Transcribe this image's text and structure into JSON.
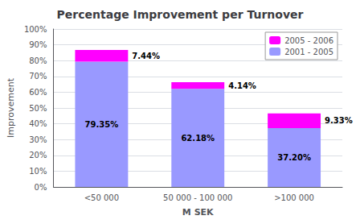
{
  "chart_data": {
    "type": "bar",
    "title": "Percentage Improvement per Turnover",
    "xlabel": "M SEK",
    "ylabel": "Improvement",
    "categories": [
      "<50 000",
      "50 000 - 100 000",
      ">100 000"
    ],
    "stacked": true,
    "series": [
      {
        "name": "2001 - 2005",
        "color": "#9999FF",
        "values": [
          79.35,
          62.18,
          37.2
        ],
        "value_labels": [
          "79.35%",
          "62.18%",
          "37.20%"
        ]
      },
      {
        "name": "2005 - 2006",
        "color": "#FF00FF",
        "values": [
          7.44,
          4.14,
          9.33
        ],
        "value_labels": [
          "7.44%",
          "4.14%",
          "9.33%"
        ]
      }
    ],
    "ylim": [
      0,
      100
    ],
    "yticks": [
      {
        "value": 0,
        "label": "0%"
      },
      {
        "value": 10,
        "label": "10%"
      },
      {
        "value": 20,
        "label": "20%"
      },
      {
        "value": 30,
        "label": "30%"
      },
      {
        "value": 40,
        "label": "40%"
      },
      {
        "value": 50,
        "label": "50%"
      },
      {
        "value": 60,
        "label": "60%"
      },
      {
        "value": 70,
        "label": "70%"
      },
      {
        "value": 80,
        "label": "80%"
      },
      {
        "value": 90,
        "label": "90%"
      },
      {
        "value": 100,
        "label": "100%"
      }
    ],
    "grid": true,
    "legend": "upper right",
    "data_labels": true
  }
}
